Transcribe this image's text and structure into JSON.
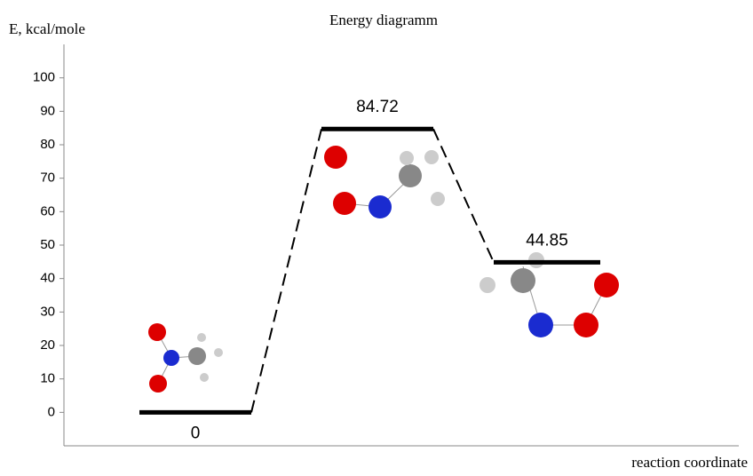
{
  "chart_data": {
    "type": "energy_levels",
    "title": "Energy diagramm",
    "y_label": "E, kcal/mole",
    "x_label": "reaction coordinate",
    "values": [
      0,
      84.72,
      44.85
    ],
    "color": "#000000",
    "ylim": [
      -10,
      110
    ],
    "yticks": [
      0,
      10,
      20,
      30,
      40,
      50,
      60,
      70,
      80,
      90,
      100
    ]
  }
}
